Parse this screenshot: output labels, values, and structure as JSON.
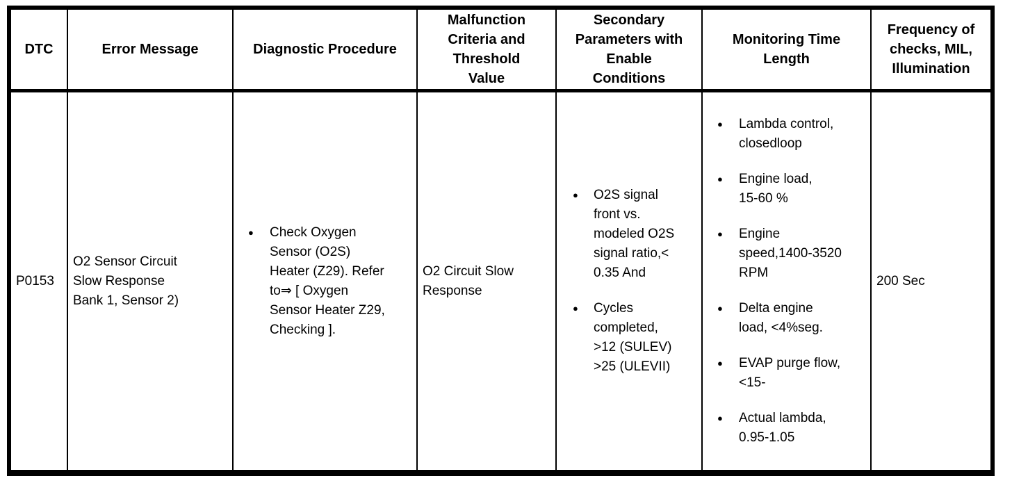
{
  "icons": {
    "bullet": "●"
  },
  "table": {
    "headers": {
      "dtc": "DTC",
      "error_message": "Error Message",
      "diagnostic_procedure": "Diagnostic Procedure",
      "malfunction_criteria": "Malfunction\nCriteria and\nThreshold\nValue",
      "secondary_parameters": "Secondary\nParameters with\nEnable\nConditions",
      "monitoring_time": "Monitoring Time\nLength",
      "frequency": "Frequency of\nchecks, MIL,\nIllumination"
    },
    "row": {
      "dtc": "P0153",
      "error_message": "O2 Sensor Circuit\nSlow Response\nBank 1, Sensor 2)",
      "diagnostic_procedure": [
        "Check Oxygen\nSensor (O2S)\nHeater (Z29). Refer\nto⇒ [ Oxygen\nSensor Heater Z29,\nChecking ]."
      ],
      "malfunction_criteria": "O2 Circuit Slow\nResponse",
      "secondary_parameters": [
        "O2S signal\nfront vs.\nmodeled O2S\nsignal ratio,<\n0.35 And",
        "Cycles\ncompleted,\n>12 (SULEV)\n>25 (ULEVII)"
      ],
      "monitoring_time": [
        "Lambda control,\nclosedloop",
        "Engine load,\n15-60 %",
        "Engine\nspeed,1400-3520\nRPM",
        "Delta engine\nload, <4%seg.",
        "EVAP purge flow,\n<15-",
        "Actual lambda,\n0.95-1.05"
      ],
      "frequency": "200 Sec"
    }
  }
}
